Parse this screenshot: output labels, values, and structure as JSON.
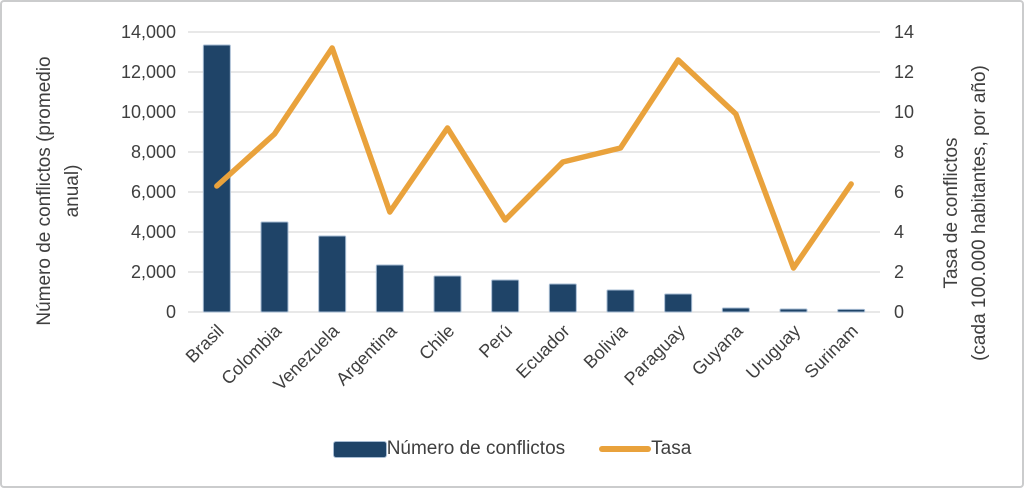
{
  "figure": {
    "background": "#ffffff",
    "border_color": "#cbcccd",
    "text_color": "#3f3f3f",
    "gridline_color": "#d9d9d9"
  },
  "chart_data": {
    "type": "combo-bar-line",
    "categories": [
      "Brasil",
      "Colombia",
      "Venezuela",
      "Argentina",
      "Chile",
      "Perú",
      "Ecuador",
      "Bolivia",
      "Paraguay",
      "Guyana",
      "Uruguay",
      "Surinam"
    ],
    "series": [
      {
        "name": "Número de conflictos",
        "type": "bar",
        "axis": "left",
        "color": "#1f4468",
        "border_color": "#a7bcd3",
        "values": [
          13350,
          4500,
          3800,
          2350,
          1800,
          1600,
          1400,
          1100,
          900,
          200,
          150,
          130
        ]
      },
      {
        "name": "Tasa",
        "type": "line",
        "axis": "right",
        "color": "#e9a23c",
        "values": [
          6.3,
          8.9,
          13.2,
          5.0,
          9.2,
          4.6,
          7.5,
          8.2,
          12.6,
          9.9,
          2.2,
          6.4
        ]
      }
    ],
    "left_axis": {
      "title_line1": "Número de conflictos (promedio",
      "title_line2": "anual)",
      "min": 0,
      "max": 14000,
      "step": 2000,
      "ticks": [
        "0",
        "2,000",
        "4,000",
        "6,000",
        "8,000",
        "10,000",
        "12,000",
        "14,000"
      ]
    },
    "right_axis": {
      "title_line1": "Tasa de conflictos",
      "title_line2": "(cada 100.000 habitantes, por año)",
      "min": 0,
      "max": 14,
      "step": 2,
      "ticks": [
        "0",
        "2",
        "4",
        "6",
        "8",
        "10",
        "12",
        "14"
      ]
    },
    "grid": true,
    "legend_position": "bottom"
  }
}
